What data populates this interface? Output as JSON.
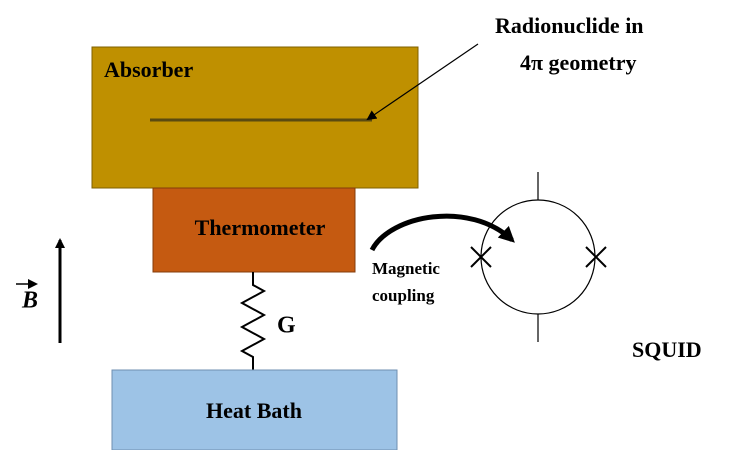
{
  "absorber": {
    "label": "Absorber"
  },
  "source": {
    "label_line1": "Radionuclide in",
    "label_line2": "4π geometry"
  },
  "thermometer": {
    "label": "Thermometer"
  },
  "link": {
    "label": "G"
  },
  "heat_bath": {
    "label": "Heat Bath"
  },
  "field": {
    "label": "B"
  },
  "coupling": {
    "label_line1": "Magnetic",
    "label_line2": "coupling"
  },
  "squid": {
    "label": "SQUID"
  }
}
